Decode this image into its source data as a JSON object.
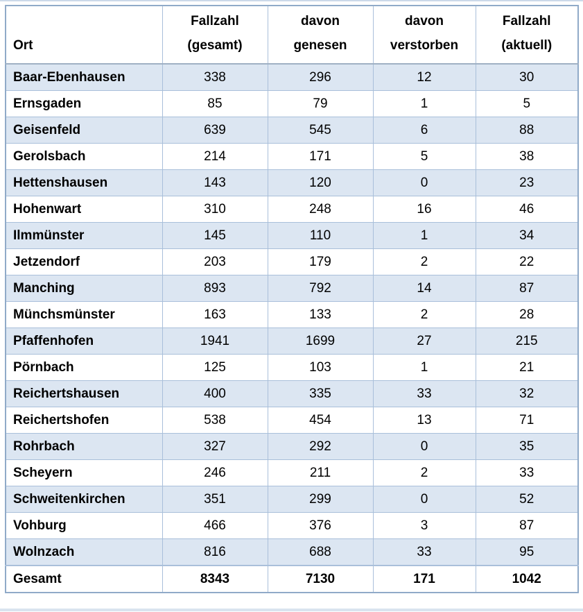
{
  "table": {
    "columns": [
      {
        "id": "ort",
        "line1": "",
        "line2": "Ort"
      },
      {
        "id": "fallzahl_gesamt",
        "line1": "Fallzahl",
        "line2": "(gesamt)"
      },
      {
        "id": "davon_genesen",
        "line1": "davon",
        "line2": "genesen"
      },
      {
        "id": "davon_verstorben",
        "line1": "davon",
        "line2": "verstorben"
      },
      {
        "id": "fallzahl_aktuell",
        "line1": "Fallzahl",
        "line2": "(aktuell)"
      }
    ],
    "rows": [
      [
        "Baar-Ebenhausen",
        338,
        296,
        12,
        30
      ],
      [
        "Ernsgaden",
        85,
        79,
        1,
        5
      ],
      [
        "Geisenfeld",
        639,
        545,
        6,
        88
      ],
      [
        "Gerolsbach",
        214,
        171,
        5,
        38
      ],
      [
        "Hettenshausen",
        143,
        120,
        0,
        23
      ],
      [
        "Hohenwart",
        310,
        248,
        16,
        46
      ],
      [
        "Ilmmünster",
        145,
        110,
        1,
        34
      ],
      [
        "Jetzendorf",
        203,
        179,
        2,
        22
      ],
      [
        "Manching",
        893,
        792,
        14,
        87
      ],
      [
        "Münchsmünster",
        163,
        133,
        2,
        28
      ],
      [
        "Pfaffenhofen",
        1941,
        1699,
        27,
        215
      ],
      [
        "Pörnbach",
        125,
        103,
        1,
        21
      ],
      [
        "Reichertshausen",
        400,
        335,
        33,
        32
      ],
      [
        "Reichertshofen",
        538,
        454,
        13,
        71
      ],
      [
        "Rohrbach",
        327,
        292,
        0,
        35
      ],
      [
        "Scheyern",
        246,
        211,
        2,
        33
      ],
      [
        "Schweitenkirchen",
        351,
        299,
        0,
        52
      ],
      [
        "Vohburg",
        466,
        376,
        3,
        87
      ],
      [
        "Wolnzach",
        816,
        688,
        33,
        95
      ]
    ],
    "total": [
      "Gesamt",
      8343,
      7130,
      171,
      1042
    ]
  },
  "colors": {
    "row_shading": "#dce6f2",
    "inner_border": "#a9bfda",
    "outer_border": "#90aac8",
    "header_rule": "#9fb0c4",
    "page_rule": "#ccd9e9",
    "text": "#000000"
  }
}
